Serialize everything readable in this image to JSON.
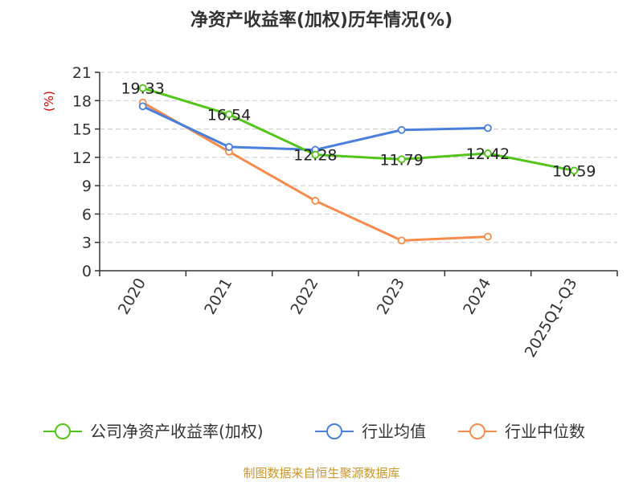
{
  "chart_data": {
    "type": "line",
    "title": "净资产收益率(加权)历年情况(%)",
    "ylabel": "(%)",
    "xlabel": "",
    "categories": [
      "2020",
      "2021",
      "2022",
      "2023",
      "2024",
      "2025Q1-Q3"
    ],
    "ylim": [
      0,
      21
    ],
    "yticks": [
      0,
      3,
      6,
      9,
      12,
      15,
      18,
      21
    ],
    "grid": true,
    "legend_position": "bottom",
    "series": [
      {
        "name": "公司净资产收益率(加权)",
        "color": "#52c41a",
        "values": [
          19.33,
          16.54,
          12.28,
          11.79,
          12.42,
          10.59
        ],
        "labels": [
          "19.33",
          "16.54",
          "12.28",
          "11.79",
          "12.42",
          "10.59"
        ]
      },
      {
        "name": "行业均值",
        "color": "#4a7fdc",
        "values": [
          17.4,
          13.1,
          12.8,
          14.9,
          15.1,
          null
        ]
      },
      {
        "name": "行业中位数",
        "color": "#f58b4c",
        "values": [
          17.8,
          12.6,
          7.4,
          3.2,
          3.6,
          null
        ]
      }
    ]
  },
  "footer": {
    "source": "制图数据来自恒生聚源数据库"
  }
}
